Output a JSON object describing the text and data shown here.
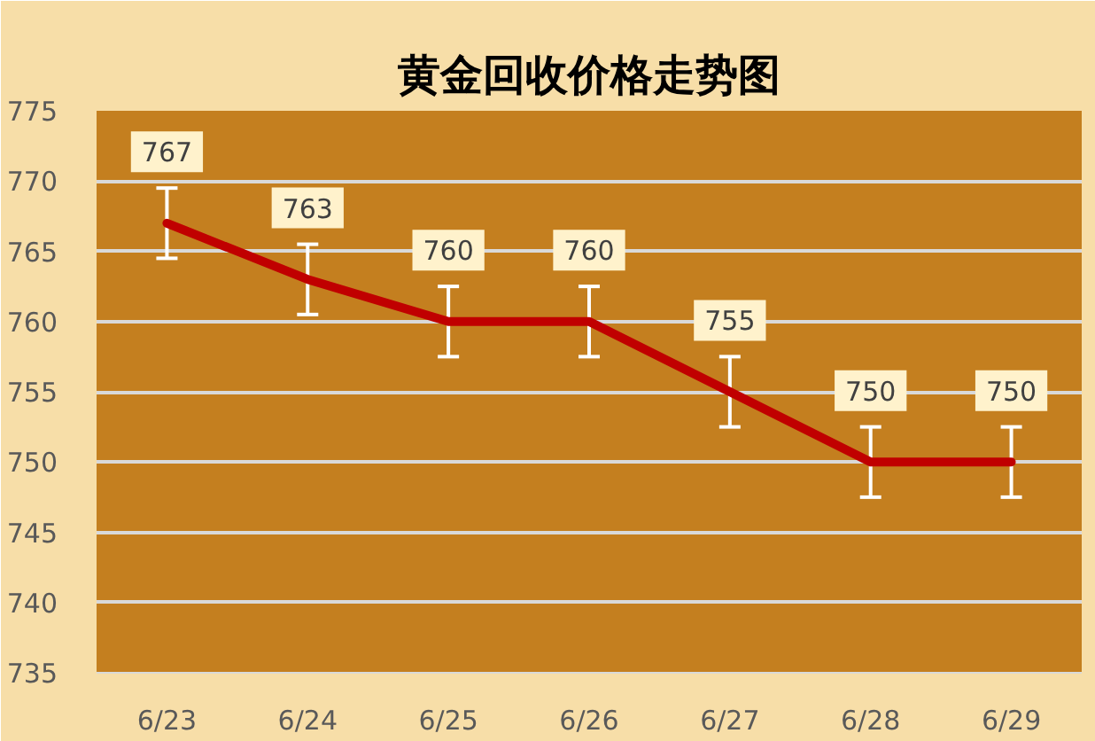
{
  "chart_data": {
    "type": "line",
    "title": "黄金回收价格走势图",
    "categories": [
      "6/23",
      "6/24",
      "6/25",
      "6/26",
      "6/27",
      "6/28",
      "6/29"
    ],
    "series": [
      {
        "color": "#c00000",
        "values": [
          767,
          763,
          760,
          760,
          755,
          750,
          750
        ],
        "errors": [
          2.5,
          2.5,
          2.5,
          2.5,
          2.5,
          2.5,
          2.5
        ]
      }
    ],
    "ylim": [
      735,
      775
    ],
    "yticks": [
      735,
      740,
      745,
      750,
      755,
      760,
      765,
      770,
      775
    ],
    "grid": "y",
    "data_labels": true
  }
}
